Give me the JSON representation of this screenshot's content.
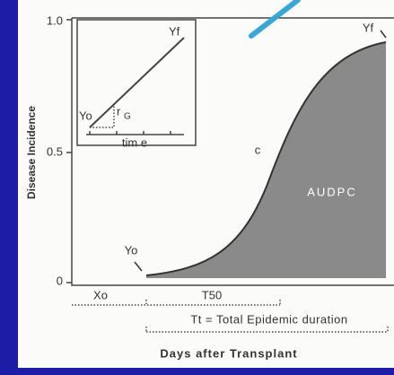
{
  "y_axis": {
    "label": "Disease Incidence",
    "ticks": [
      "1.0",
      "0.5",
      "0"
    ]
  },
  "inset": {
    "start": "Yo",
    "end": "Yf",
    "rate": "r",
    "rate_sub": "G",
    "x_label": "tim e"
  },
  "curve": {
    "label": "c",
    "area": "AUDPC",
    "start": "Yo",
    "end": "Yf"
  },
  "x_axis": {
    "x0": "Xo",
    "t50": "T50",
    "total": "Tt = Total Epidemic duration",
    "label": "Days after Transplant"
  }
}
